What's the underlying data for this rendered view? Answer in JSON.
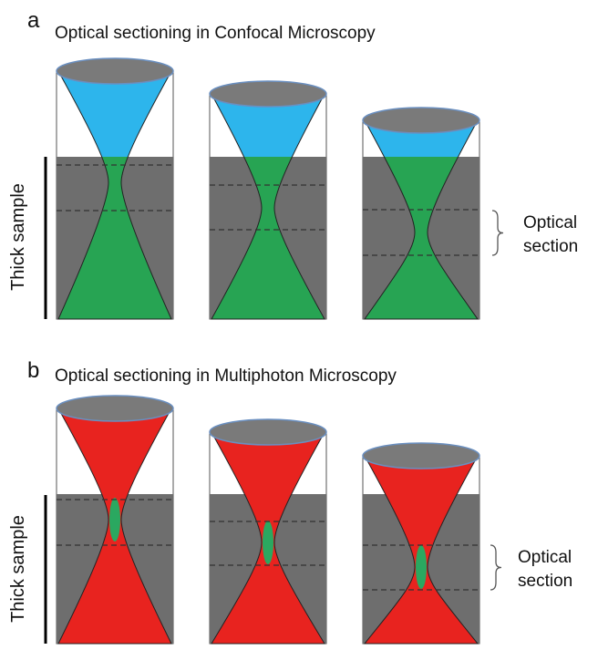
{
  "panel_a": {
    "label": "a",
    "title": "Optical sectioning in Confocal Microscopy",
    "side_label": "Thick sample",
    "bracket_label": [
      "Optical",
      "section"
    ]
  },
  "panel_b": {
    "label": "b",
    "title": "Optical sectioning in Multiphoton Microscopy",
    "side_label": "Thick sample",
    "bracket_label": [
      "Optical",
      "section"
    ]
  }
}
